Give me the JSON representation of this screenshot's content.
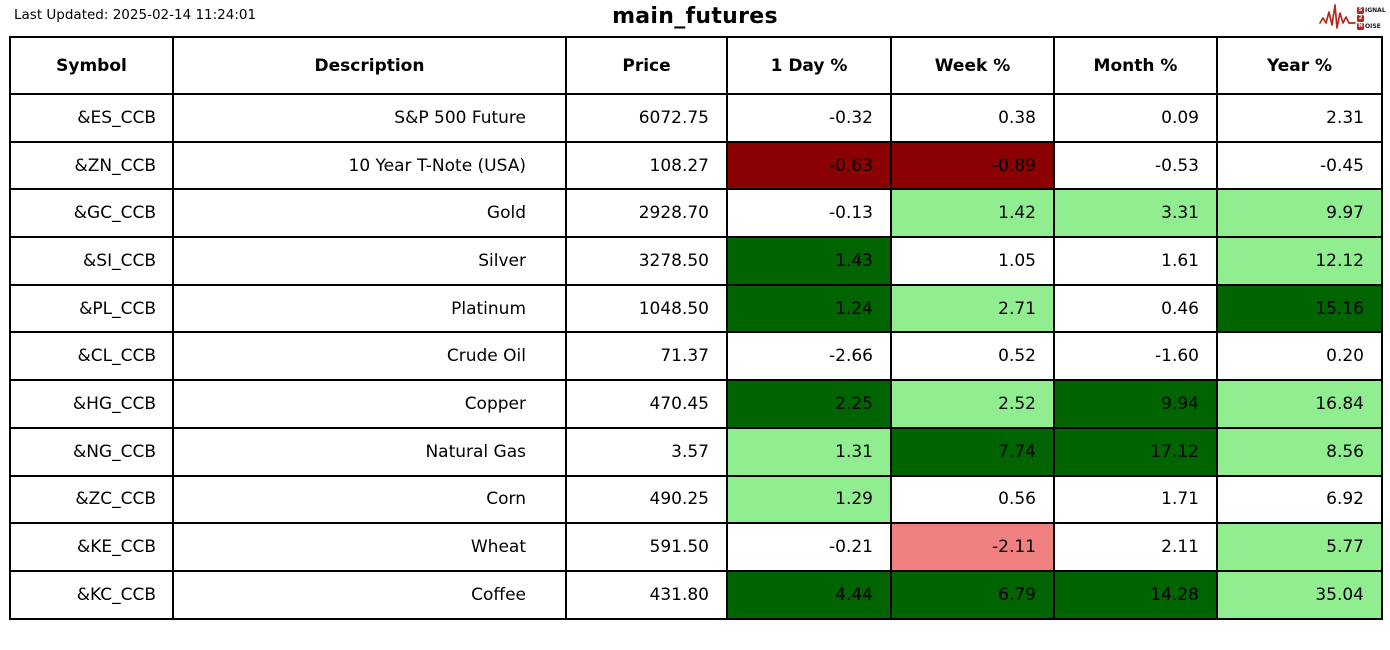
{
  "header": {
    "last_updated": "Last Updated: 2025-02-14 11:24:01"
  },
  "logo": {
    "word1_initial": "S",
    "word1_rest": "IGNAL",
    "word2": "2",
    "word3_initial": "N",
    "word3_rest": "OISE",
    "red": "#b4281e"
  },
  "colors": {
    "none": "#ffffff",
    "up_strong": "#006400",
    "up_mild": "#90EE90",
    "down_strong": "#8B0000",
    "down_mild": "#F08080"
  },
  "chart_data": {
    "type": "table",
    "title": "main_futures",
    "columns": [
      "Symbol",
      "Description",
      "Price",
      "1 Day %",
      "Week %",
      "Month %",
      "Year %"
    ],
    "rows": [
      {
        "symbol": "&ES_CCB",
        "description": "S&P 500 Future",
        "price": "6072.75",
        "pct": [
          {
            "value": "-0.32",
            "bg": "none"
          },
          {
            "value": "0.38",
            "bg": "none"
          },
          {
            "value": "0.09",
            "bg": "none"
          },
          {
            "value": "2.31",
            "bg": "none"
          }
        ]
      },
      {
        "symbol": "&ZN_CCB",
        "description": "10 Year T-Note (USA)",
        "price": "108.27",
        "pct": [
          {
            "value": "-0.63",
            "bg": "down_strong"
          },
          {
            "value": "-0.89",
            "bg": "down_strong"
          },
          {
            "value": "-0.53",
            "bg": "none"
          },
          {
            "value": "-0.45",
            "bg": "none"
          }
        ]
      },
      {
        "symbol": "&GC_CCB",
        "description": "Gold",
        "price": "2928.70",
        "pct": [
          {
            "value": "-0.13",
            "bg": "none"
          },
          {
            "value": "1.42",
            "bg": "up_mild"
          },
          {
            "value": "3.31",
            "bg": "up_mild"
          },
          {
            "value": "9.97",
            "bg": "up_mild"
          }
        ]
      },
      {
        "symbol": "&SI_CCB",
        "description": "Silver",
        "price": "3278.50",
        "pct": [
          {
            "value": "1.43",
            "bg": "up_strong"
          },
          {
            "value": "1.05",
            "bg": "none"
          },
          {
            "value": "1.61",
            "bg": "none"
          },
          {
            "value": "12.12",
            "bg": "up_mild"
          }
        ]
      },
      {
        "symbol": "&PL_CCB",
        "description": "Platinum",
        "price": "1048.50",
        "pct": [
          {
            "value": "1.24",
            "bg": "up_strong"
          },
          {
            "value": "2.71",
            "bg": "up_mild"
          },
          {
            "value": "0.46",
            "bg": "none"
          },
          {
            "value": "15.16",
            "bg": "up_strong"
          }
        ]
      },
      {
        "symbol": "&CL_CCB",
        "description": "Crude Oil",
        "price": "71.37",
        "pct": [
          {
            "value": "-2.66",
            "bg": "none"
          },
          {
            "value": "0.52",
            "bg": "none"
          },
          {
            "value": "-1.60",
            "bg": "none"
          },
          {
            "value": "0.20",
            "bg": "none"
          }
        ]
      },
      {
        "symbol": "&HG_CCB",
        "description": "Copper",
        "price": "470.45",
        "pct": [
          {
            "value": "2.25",
            "bg": "up_strong"
          },
          {
            "value": "2.52",
            "bg": "up_mild"
          },
          {
            "value": "9.94",
            "bg": "up_strong"
          },
          {
            "value": "16.84",
            "bg": "up_mild"
          }
        ]
      },
      {
        "symbol": "&NG_CCB",
        "description": "Natural Gas",
        "price": "3.57",
        "pct": [
          {
            "value": "1.31",
            "bg": "up_mild"
          },
          {
            "value": "7.74",
            "bg": "up_strong"
          },
          {
            "value": "17.12",
            "bg": "up_strong"
          },
          {
            "value": "8.56",
            "bg": "up_mild"
          }
        ]
      },
      {
        "symbol": "&ZC_CCB",
        "description": "Corn",
        "price": "490.25",
        "pct": [
          {
            "value": "1.29",
            "bg": "up_mild"
          },
          {
            "value": "0.56",
            "bg": "none"
          },
          {
            "value": "1.71",
            "bg": "none"
          },
          {
            "value": "6.92",
            "bg": "none"
          }
        ]
      },
      {
        "symbol": "&KE_CCB",
        "description": "Wheat",
        "price": "591.50",
        "pct": [
          {
            "value": "-0.21",
            "bg": "none"
          },
          {
            "value": "-2.11",
            "bg": "down_mild"
          },
          {
            "value": "2.11",
            "bg": "none"
          },
          {
            "value": "5.77",
            "bg": "up_mild"
          }
        ]
      },
      {
        "symbol": "&KC_CCB",
        "description": "Coffee",
        "price": "431.80",
        "pct": [
          {
            "value": "4.44",
            "bg": "up_strong"
          },
          {
            "value": "6.79",
            "bg": "up_strong"
          },
          {
            "value": "14.28",
            "bg": "up_strong"
          },
          {
            "value": "35.04",
            "bg": "up_mild"
          }
        ]
      }
    ]
  }
}
